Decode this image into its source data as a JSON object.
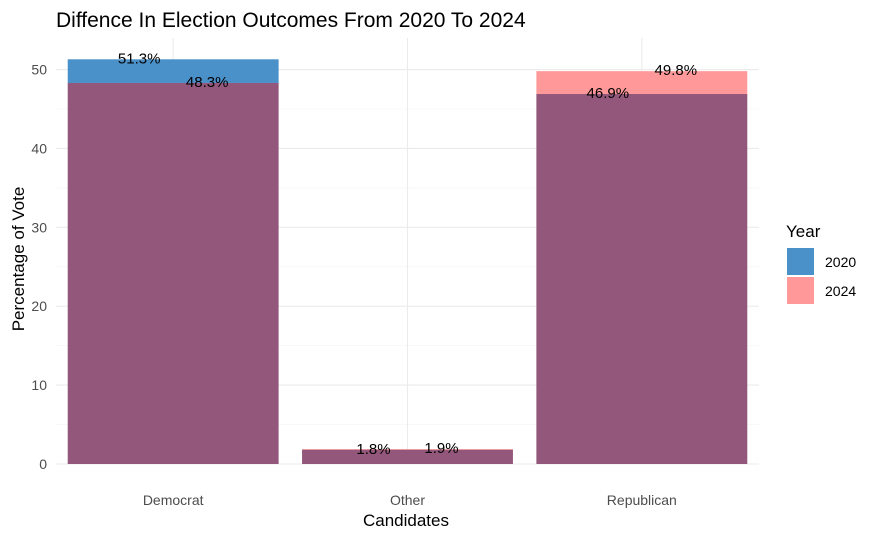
{
  "chart_data": {
    "type": "bar",
    "title": "Diffence In Election Outcomes From 2020 To 2024",
    "xlabel": "Candidates",
    "ylabel": "Percentage of Vote",
    "categories": [
      "Democrat",
      "Other",
      "Republican"
    ],
    "ylim": [
      0,
      54
    ],
    "yticks": [
      0,
      10,
      20,
      30,
      40,
      50
    ],
    "grid": true,
    "bar_mode": "overlaid",
    "legend": {
      "title": "Year",
      "position": "right"
    },
    "series": [
      {
        "name": "2020",
        "color": "#4a90c9",
        "values": [
          51.3,
          1.8,
          46.9
        ],
        "labels": [
          "51.3%",
          "1.8%",
          "46.9%"
        ]
      },
      {
        "name": "2024",
        "color": "#ff9999",
        "values": [
          48.3,
          1.9,
          49.8
        ],
        "labels": [
          "48.3%",
          "1.9%",
          "49.8%"
        ]
      }
    ],
    "overlap_color": "#92577a"
  }
}
